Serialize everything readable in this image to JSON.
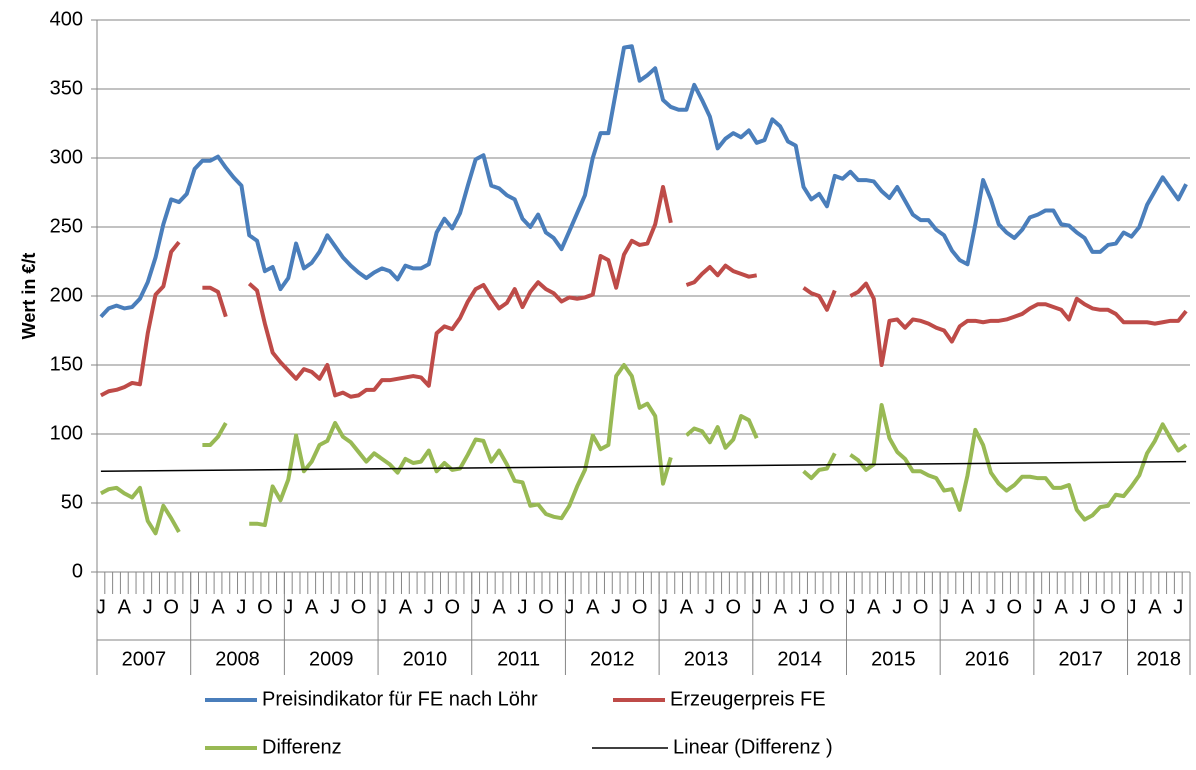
{
  "chart_data": {
    "type": "line",
    "y_label": "Wert  in €/t",
    "ylim": [
      0,
      400
    ],
    "yticks": [
      0,
      50,
      100,
      150,
      200,
      250,
      300,
      350,
      400
    ],
    "grid": true,
    "categories": [
      "J",
      null,
      null,
      "A",
      null,
      null,
      "J",
      null,
      null,
      "O",
      null,
      null,
      "J",
      null,
      null,
      "A",
      null,
      null,
      "J",
      null,
      null,
      "O",
      null,
      null,
      "J",
      null,
      null,
      "A",
      null,
      null,
      "J",
      null,
      null,
      "O",
      null,
      null,
      "J",
      null,
      null,
      "A",
      null,
      null,
      "J",
      null,
      null,
      "O",
      null,
      null,
      "J",
      null,
      null,
      "A",
      null,
      null,
      "J",
      null,
      null,
      "O",
      null,
      null,
      "J",
      null,
      null,
      "A",
      null,
      null,
      "J",
      null,
      null,
      "O",
      null,
      null,
      "J",
      null,
      null,
      "A",
      null,
      null,
      "J",
      null,
      null,
      "O",
      null,
      null,
      "J",
      null,
      null,
      "A",
      null,
      null,
      "J",
      null,
      null,
      "O",
      null,
      null,
      "J",
      null,
      null,
      "A",
      null,
      null,
      "J",
      null,
      null,
      "O",
      null,
      null,
      "J",
      null,
      null,
      "A",
      null,
      null,
      "J",
      null,
      null,
      "O",
      null,
      null,
      "J",
      null,
      null,
      "A",
      null,
      null,
      "J",
      null,
      null,
      "O",
      null,
      null,
      "J",
      null,
      null,
      "A",
      null,
      null,
      "J",
      null
    ],
    "groups": [
      "2007",
      "2008",
      "2009",
      "2010",
      "2011",
      "2012",
      "2013",
      "2014",
      "2015",
      "2016",
      "2017",
      "2018"
    ],
    "series": [
      {
        "name": "Preisindikator für FE nach Löhr",
        "color": "#4a7ebb",
        "values": [
          185,
          191,
          193,
          191,
          192,
          198,
          210,
          228,
          252,
          270,
          268,
          274,
          292,
          298,
          298,
          301,
          293,
          286,
          280,
          244,
          240,
          218,
          221,
          205,
          213,
          238,
          220,
          224,
          232,
          244,
          236,
          228,
          222,
          217,
          213,
          217,
          220,
          218,
          212,
          222,
          220,
          220,
          223,
          246,
          256,
          249,
          260,
          280,
          299,
          302,
          280,
          278,
          273,
          270,
          256,
          250,
          259,
          246,
          242,
          234,
          247,
          260,
          273,
          300,
          318,
          318,
          349,
          380,
          381,
          356,
          360,
          365,
          342,
          337,
          335,
          335,
          353,
          342,
          330,
          307,
          314,
          318,
          315,
          320,
          311,
          313,
          328,
          323,
          312,
          309,
          279,
          270,
          274,
          265,
          287,
          285,
          290,
          284,
          284,
          283,
          276,
          271,
          279,
          269,
          259,
          255,
          255,
          248,
          244,
          233,
          226,
          223,
          252,
          284,
          270,
          252,
          246,
          242,
          248,
          257,
          259,
          262,
          262,
          252,
          251,
          246,
          242,
          232,
          232,
          237,
          238,
          246,
          243,
          250,
          266,
          276,
          286,
          278,
          270,
          281
        ]
      },
      {
        "name": "Erzeugerpreis FE",
        "color": "#be4b48",
        "values": [
          128,
          131,
          132,
          134,
          137,
          136,
          173,
          201,
          207,
          232,
          239,
          null,
          null,
          206,
          206,
          203,
          185,
          null,
          null,
          209,
          204,
          180,
          159,
          152,
          146,
          140,
          147,
          145,
          140,
          150,
          128,
          130,
          127,
          128,
          132,
          132,
          139,
          139,
          140,
          141,
          142,
          141,
          135,
          173,
          178,
          176,
          184,
          196,
          205,
          208,
          199,
          191,
          195,
          205,
          192,
          203,
          210,
          205,
          202,
          196,
          199,
          198,
          199,
          201,
          229,
          226,
          206,
          230,
          240,
          237,
          238,
          252,
          279,
          253,
          null,
          208,
          210,
          216,
          221,
          215,
          222,
          218,
          216,
          214,
          215,
          null,
          null,
          null,
          null,
          null,
          206,
          202,
          200,
          190,
          204,
          null,
          200,
          203,
          209,
          198,
          150,
          182,
          183,
          177,
          183,
          182,
          180,
          177,
          175,
          167,
          178,
          182,
          182,
          181,
          182,
          182,
          183,
          185,
          187,
          191,
          194,
          194,
          192,
          190,
          183,
          198,
          194,
          191,
          190,
          190,
          187,
          181,
          181,
          181,
          181,
          180,
          181,
          182,
          182,
          189
        ]
      },
      {
        "name": "Differenz",
        "color": "#98b954",
        "values": [
          57,
          60,
          61,
          57,
          54,
          61,
          37,
          28,
          48,
          39,
          29,
          null,
          null,
          92,
          92,
          98,
          108,
          null,
          null,
          35,
          35,
          34,
          62,
          52,
          67,
          99,
          73,
          80,
          92,
          95,
          108,
          98,
          94,
          87,
          80,
          86,
          82,
          78,
          72,
          82,
          79,
          80,
          88,
          73,
          79,
          74,
          75,
          85,
          96,
          95,
          80,
          88,
          78,
          66,
          65,
          48,
          49,
          42,
          40,
          39,
          48,
          62,
          74,
          99,
          89,
          92,
          142,
          150,
          142,
          119,
          122,
          113,
          64,
          83,
          null,
          99,
          104,
          102,
          94,
          105,
          90,
          96,
          113,
          110,
          97,
          null,
          null,
          null,
          null,
          null,
          73,
          68,
          74,
          75,
          86,
          null,
          85,
          81,
          74,
          78,
          121,
          97,
          87,
          82,
          73,
          73,
          70,
          68,
          59,
          60,
          45,
          70,
          103,
          92,
          72,
          64,
          59,
          63,
          69,
          69,
          68,
          68,
          61,
          61,
          63,
          45,
          38,
          41,
          47,
          48,
          56,
          55,
          62,
          70,
          86,
          95,
          107,
          97,
          88,
          92
        ]
      }
    ],
    "trendline": {
      "name": "Linear (Differenz )",
      "color": "#000000",
      "values": [
        73,
        80
      ]
    }
  }
}
